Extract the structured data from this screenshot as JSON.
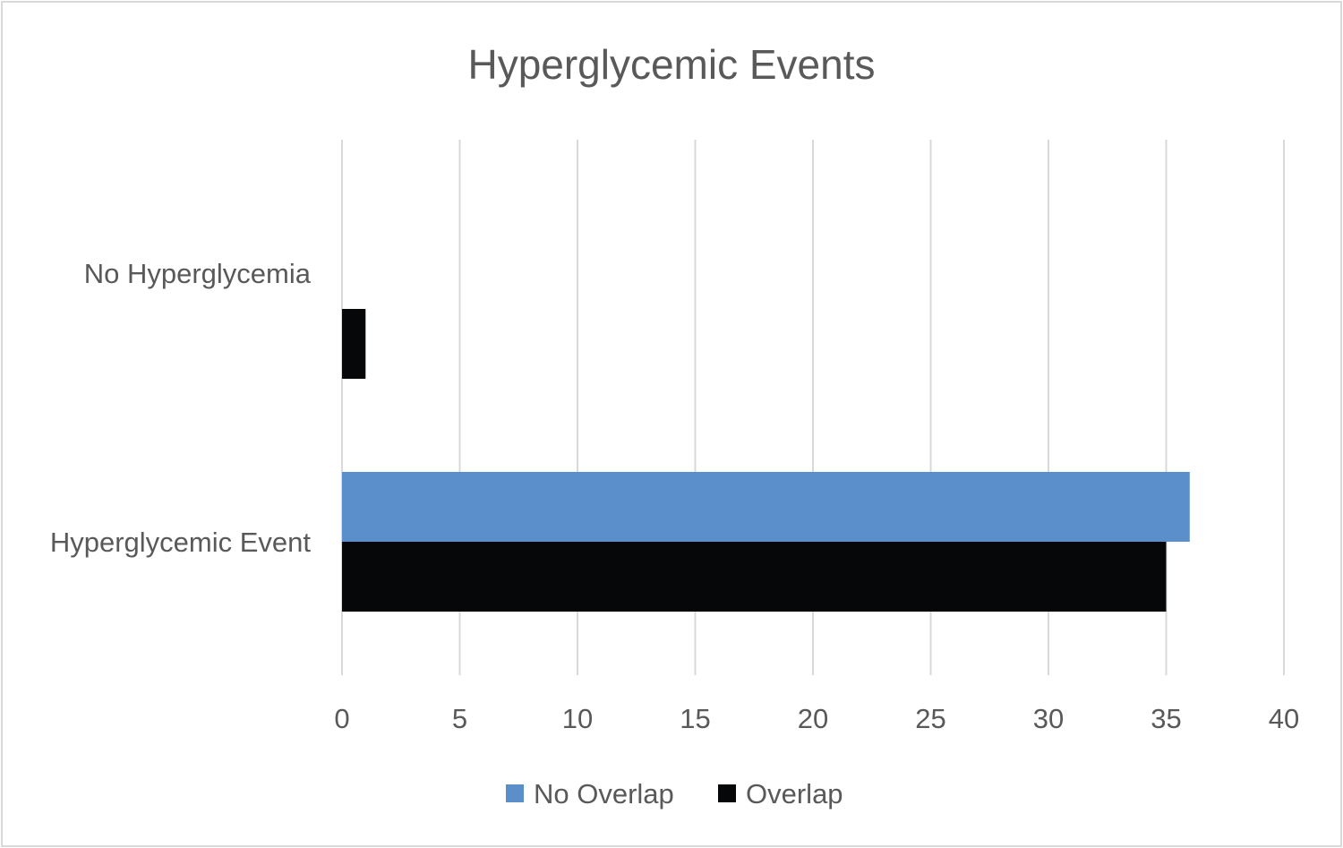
{
  "chart_data": {
    "type": "bar",
    "orientation": "horizontal",
    "title": "Hyperglycemic Events",
    "xlabel": "",
    "ylabel": "",
    "categories": [
      "No Hyperglycemia",
      "Hyperglycemic Event"
    ],
    "series": [
      {
        "name": "No Overlap",
        "color": "#5b8fcc",
        "values": [
          0,
          36
        ]
      },
      {
        "name": "Overlap",
        "color": "#050709",
        "values": [
          1,
          35
        ]
      }
    ],
    "xlim": [
      0,
      40
    ],
    "xticks": [
      "0",
      "5",
      "10",
      "15",
      "20",
      "25",
      "30",
      "35",
      "40"
    ],
    "grid": "vertical",
    "legend_position": "bottom"
  }
}
